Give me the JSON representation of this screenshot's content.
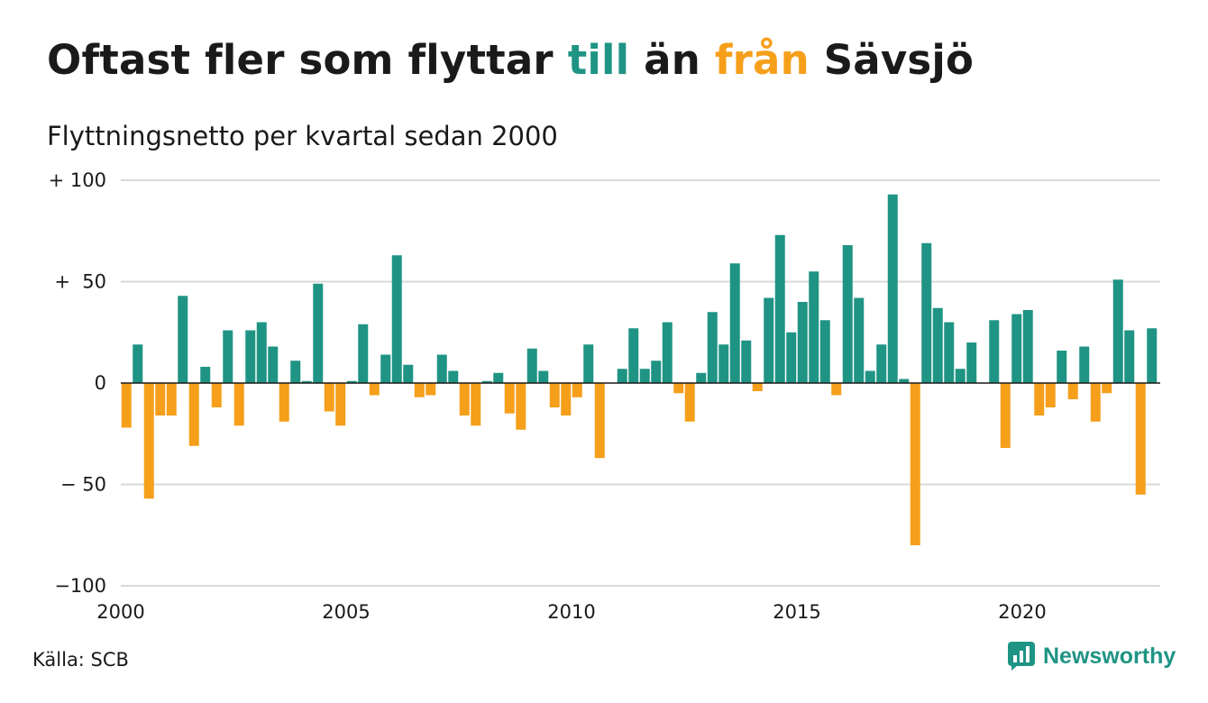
{
  "title": {
    "part1": "Oftast fler som flyttar ",
    "word_to": "till",
    "part2": " än ",
    "word_from": "från",
    "part3": " Sävsjö"
  },
  "subtitle": "Flyttningsnetto per kvartal sedan 2000",
  "source": "Källa: SCB",
  "brand": {
    "name": "Newsworthy",
    "icon": "newsworthy-logo-icon"
  },
  "colors": {
    "positive": "#1f9484",
    "negative": "#f59f1b",
    "grid": "#d9d9d9",
    "zero_line": "#1a1a1a",
    "text": "#1a1a1a"
  },
  "chart_data": {
    "type": "bar",
    "grid": true,
    "legend": "none",
    "x_start": "2000 Q1",
    "xlim": [
      2000,
      2023
    ],
    "x_ticks": [
      {
        "value": 2000,
        "label": "2000"
      },
      {
        "value": 2005,
        "label": "2005"
      },
      {
        "value": 2010,
        "label": "2010"
      },
      {
        "value": 2015,
        "label": "2015"
      },
      {
        "value": 2020,
        "label": "2020"
      }
    ],
    "ylim": [
      -100,
      100
    ],
    "y_ticks": [
      {
        "value": 100,
        "label": "+ 100"
      },
      {
        "value": 50,
        "label": "+  50"
      },
      {
        "value": 0,
        "label": "0"
      },
      {
        "value": -50,
        "label": "− 50"
      },
      {
        "value": -100,
        "label": "−100"
      }
    ],
    "values": [
      -22,
      19,
      -57,
      -16,
      -16,
      43,
      -31,
      8,
      -12,
      26,
      -21,
      26,
      30,
      18,
      -19,
      11,
      1,
      49,
      -14,
      -21,
      1,
      29,
      -6,
      14,
      63,
      9,
      -7,
      -6,
      14,
      6,
      -16,
      -21,
      1,
      5,
      -15,
      -23,
      17,
      6,
      -12,
      -16,
      -7,
      19,
      -37,
      0,
      7,
      27,
      7,
      11,
      30,
      -5,
      -19,
      5,
      35,
      19,
      59,
      21,
      -4,
      42,
      73,
      25,
      40,
      55,
      31,
      -6,
      68,
      42,
      6,
      19,
      93,
      2,
      -80,
      69,
      37,
      30,
      7,
      20,
      0,
      31,
      -32,
      34,
      36,
      -16,
      -12,
      16,
      -8,
      18,
      -19,
      -5,
      51,
      26,
      -55,
      27
    ]
  }
}
